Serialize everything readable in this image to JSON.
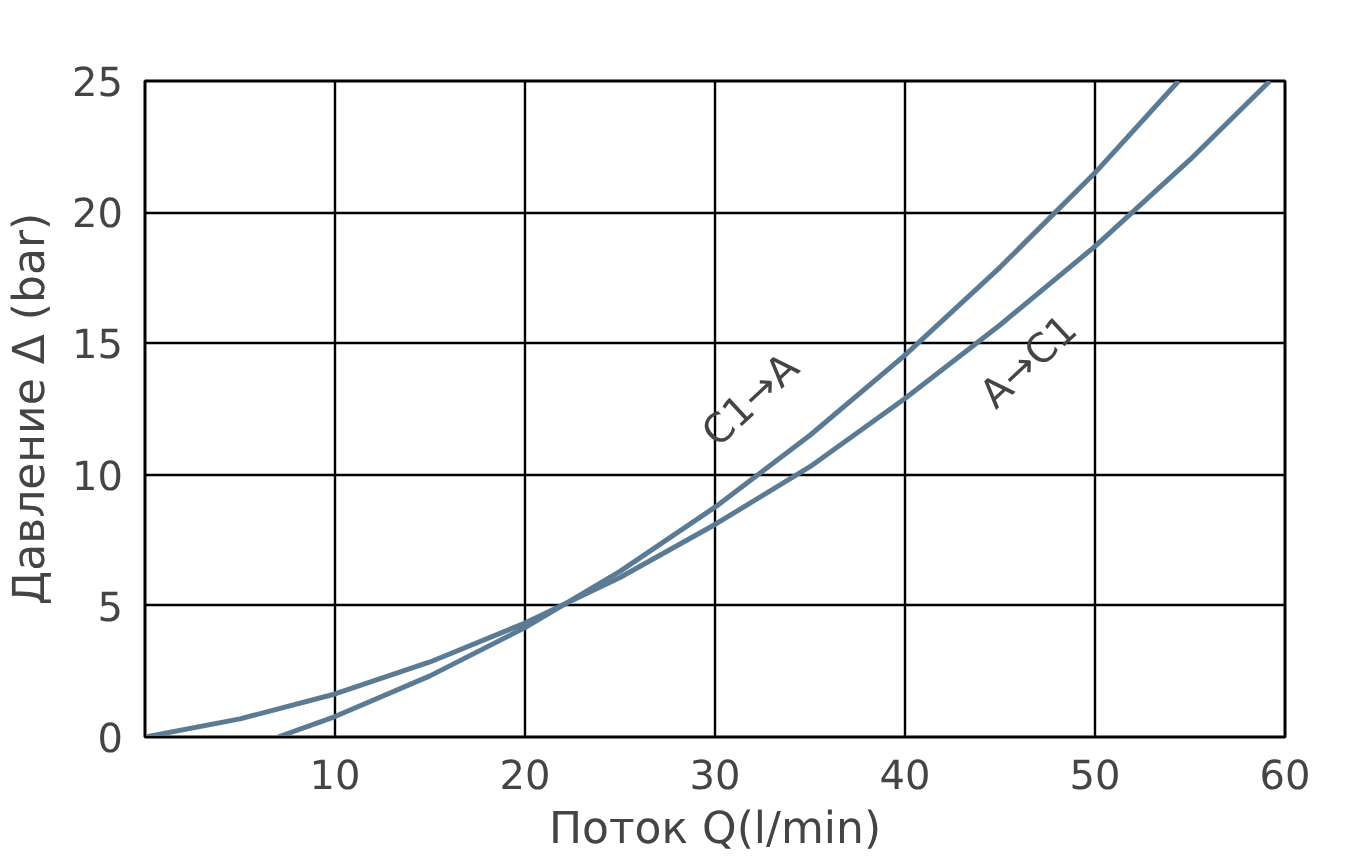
{
  "chart_data": {
    "type": "line",
    "xlabel": "Поток Q(l/min)",
    "ylabel": "Давление Δ (bar)",
    "xlim": [
      0,
      60
    ],
    "ylim": [
      0,
      25
    ],
    "xticks": [
      {
        "value": 0,
        "label": null
      },
      10,
      20,
      30,
      40,
      50,
      60
    ],
    "yticks": [
      0,
      5,
      10,
      15,
      20,
      25
    ],
    "grid": true,
    "marker": "none",
    "line_style": "solid",
    "series": [
      {
        "color": "#5b7b95",
        "x": [
          7,
          10,
          15,
          20,
          25,
          30,
          35,
          40,
          45,
          50,
          54.4
        ],
        "values": [
          0,
          0.78,
          2.33,
          4.17,
          6.31,
          8.76,
          11.5,
          14.55,
          17.9,
          21.5,
          25
        ]
      },
      {
        "color": "#5b7b95",
        "x": [
          0,
          5,
          10,
          15,
          20,
          25,
          30,
          35,
          40,
          45,
          50,
          55,
          59.2
        ],
        "values": [
          0,
          0.69,
          1.64,
          2.86,
          4.34,
          6.08,
          8.1,
          10.3,
          12.9,
          15.7,
          18.7,
          22.0,
          25
        ]
      }
    ],
    "annotations": [
      "C1→A",
      "A→C1"
    ]
  }
}
